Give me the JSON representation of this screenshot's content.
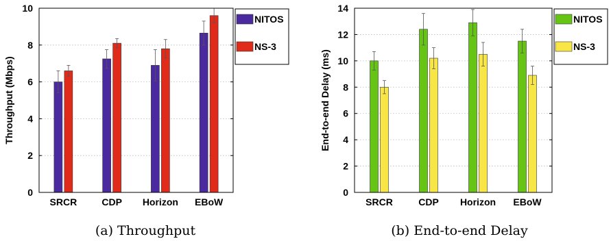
{
  "chart_data": [
    {
      "type": "bar",
      "caption": "(a) Throughput",
      "ylabel": "Throughput (Mbps)",
      "xlabel": "",
      "categories": [
        "SRCR",
        "CDP",
        "Horizon",
        "EBoW"
      ],
      "ylim": [
        0,
        10
      ],
      "yticks": [
        0,
        2,
        4,
        6,
        8,
        10
      ],
      "grid": true,
      "legend_position": "top-right",
      "series": [
        {
          "name": "NITOS",
          "color": "#4a2a9e",
          "values": [
            6.0,
            7.25,
            6.9,
            8.65
          ],
          "errors": [
            0.6,
            0.5,
            0.85,
            0.65
          ]
        },
        {
          "name": "NS-3",
          "color": "#e02b1a",
          "values": [
            6.6,
            8.1,
            7.8,
            9.6
          ],
          "errors": [
            0.3,
            0.25,
            0.5,
            0.4
          ]
        }
      ]
    },
    {
      "type": "bar",
      "caption": "(b) End-to-end Delay",
      "ylabel": "End-to-end Delay (ms)",
      "xlabel": "",
      "categories": [
        "SRCR",
        "CDP",
        "Horizon",
        "EBoW"
      ],
      "ylim": [
        0,
        14
      ],
      "yticks": [
        0,
        2,
        4,
        6,
        8,
        10,
        12,
        14
      ],
      "grid": true,
      "legend_position": "top-right",
      "series": [
        {
          "name": "NITOS",
          "color": "#66c414",
          "values": [
            10.0,
            12.4,
            12.9,
            11.5
          ],
          "errors": [
            0.7,
            1.2,
            1.0,
            0.9
          ]
        },
        {
          "name": "NS-3",
          "color": "#f8e646",
          "values": [
            8.0,
            10.2,
            10.5,
            8.9
          ],
          "errors": [
            0.5,
            0.8,
            0.9,
            0.7
          ]
        }
      ]
    }
  ]
}
